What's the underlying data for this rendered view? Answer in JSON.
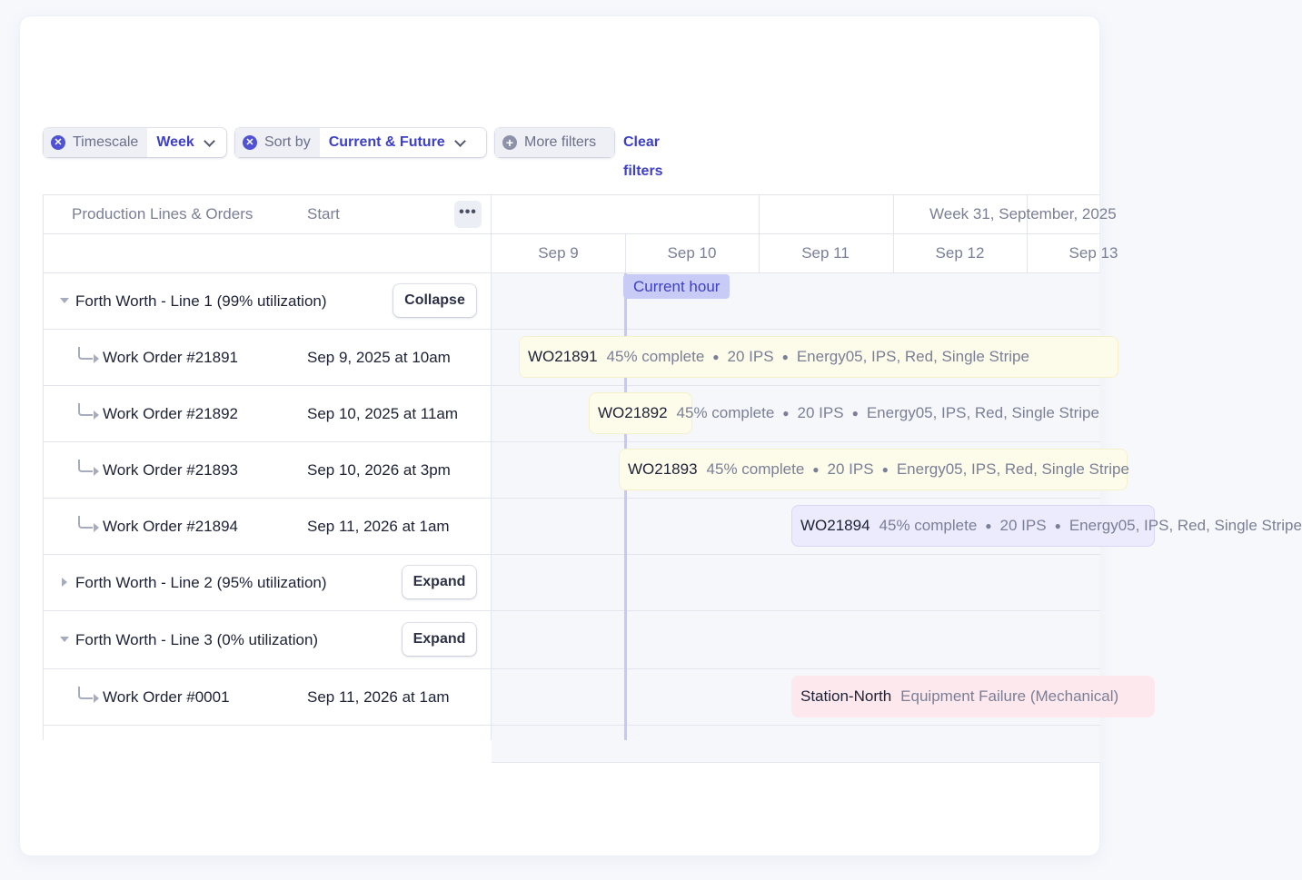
{
  "filters": {
    "timescale_label": "Timescale",
    "timescale_value": "Week",
    "sort_label": "Sort by",
    "sort_value": "Current & Future",
    "more_label": "More filters",
    "clear_label": "Clear filters"
  },
  "table": {
    "col_name": "Production Lines & Orders",
    "col_start": "Start",
    "menu_label": "•••",
    "week_label": "Week 31, September, 2025",
    "days": [
      "Sep 9",
      "Sep 10",
      "Sep 11",
      "Sep 12",
      "Sep 13"
    ],
    "current_hour_label": "Current hour",
    "rows": [
      {
        "name": "Forth Worth - Line 1 (99% utilization)",
        "button": "Collapse"
      },
      {
        "name": "Work Order #21891",
        "start": "Sep 9, 2025 at 10am",
        "bar_id": "WO21891",
        "bar_meta": [
          "45% complete",
          "20 IPS",
          "Energy05, IPS, Red, Single Stripe"
        ]
      },
      {
        "name": "Work Order #21892",
        "start": "Sep 10, 2025 at 11am",
        "bar_id": "WO21892",
        "bar_meta": [
          "45% complete",
          "20 IPS",
          "Energy05, IPS, Red, Single Stripe"
        ]
      },
      {
        "name": "Work Order #21893",
        "start": "Sep 10, 2026 at 3pm",
        "bar_id": "WO21893",
        "bar_meta": [
          "45% complete",
          "20 IPS",
          "Energy05, IPS, Red, Single Stripe"
        ]
      },
      {
        "name": "Work Order #21894",
        "start": "Sep 11, 2026 at 1am",
        "bar_id": "WO21894",
        "bar_meta": [
          "45% complete",
          "20 IPS",
          "Energy05, IPS, Red, Single Stripe"
        ]
      },
      {
        "name": "Forth Worth - Line 2 (95% utilization)",
        "button": "Expand"
      },
      {
        "name": "Forth Worth - Line 3 (0% utilization)",
        "button": "Expand"
      },
      {
        "name": "Work Order #0001",
        "start": "Sep 11, 2026 at 1am",
        "bar_id": "Station-North",
        "bar_meta": [
          "Equipment Failure (Mechanical)"
        ]
      }
    ]
  },
  "colors": {
    "accent": "#3d3fc6",
    "bar_yellow": "#fdfbea",
    "bar_purple": "#ecebfd",
    "bar_pink": "#fde8ee"
  }
}
